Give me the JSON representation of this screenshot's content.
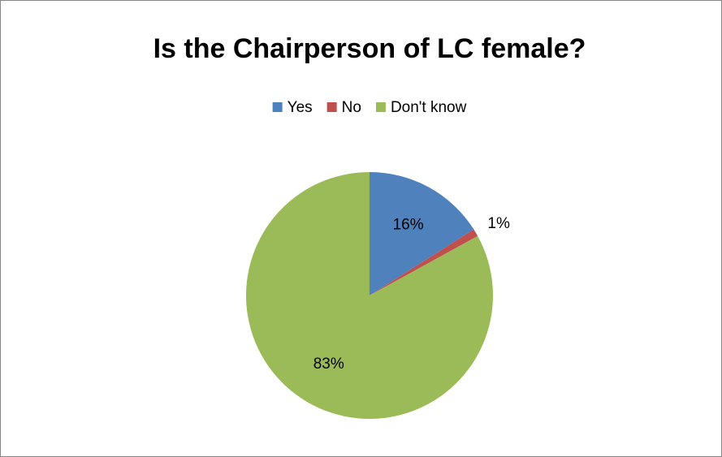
{
  "chart_data": {
    "type": "pie",
    "title": "Is the Chairperson of LC female?",
    "categories": [
      "Yes",
      "No",
      "Don't know"
    ],
    "values": [
      16,
      1,
      83
    ],
    "value_labels": [
      "16%",
      "1%",
      "83%"
    ],
    "colors": [
      "#4f81bd",
      "#c0504d",
      "#9bbb59"
    ],
    "legend": "top"
  }
}
